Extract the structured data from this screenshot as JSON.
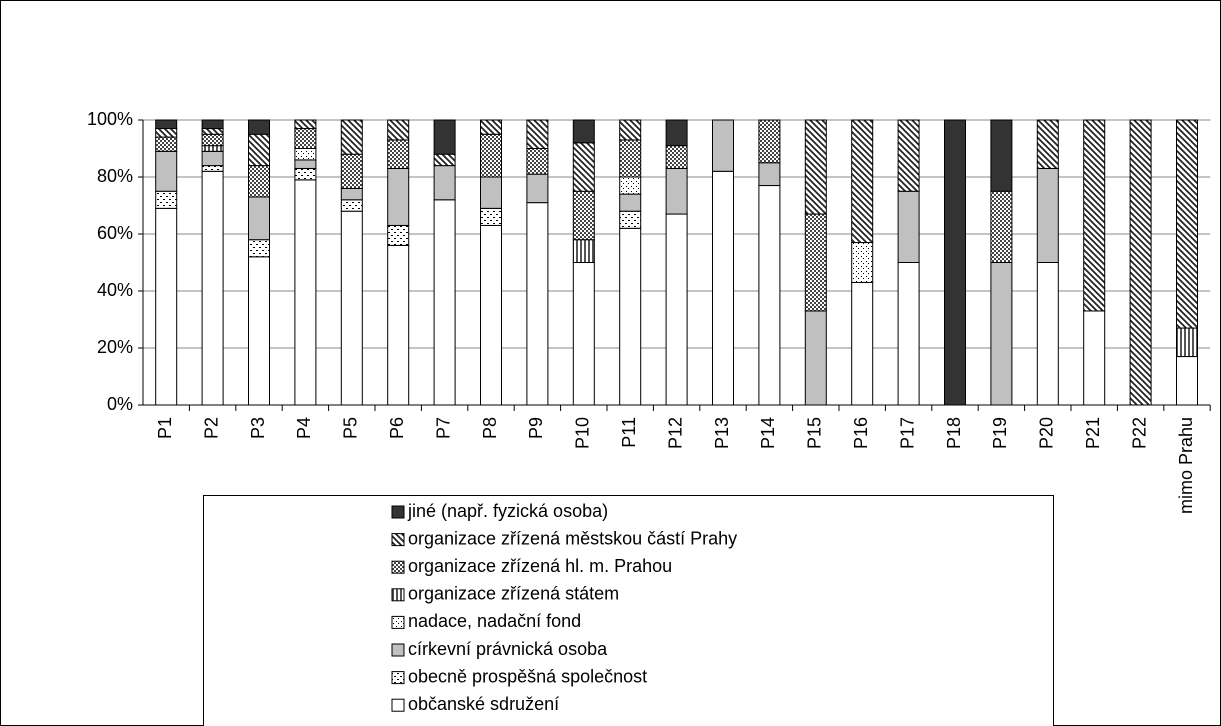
{
  "chart_data": {
    "type": "stacked_bar_100",
    "categories": [
      "P1",
      "P2",
      "P3",
      "P4",
      "P5",
      "P6",
      "P7",
      "P8",
      "P9",
      "P10",
      "P11",
      "P12",
      "P13",
      "P14",
      "P15",
      "P16",
      "P17",
      "P18",
      "P19",
      "P20",
      "P21",
      "P22",
      "mimo Prahu"
    ],
    "series": [
      {
        "name": "občanské sdružení",
        "color": "#ffffff",
        "values": [
          69,
          82,
          52,
          79,
          68,
          56,
          72,
          63,
          71,
          50,
          62,
          67,
          82,
          77,
          0,
          43,
          50,
          0,
          0,
          50,
          33,
          0,
          17
        ]
      },
      {
        "name": "obecně prospěšná společnost",
        "color": "#ffffff",
        "pattern": "dashes",
        "values": [
          6,
          2,
          6,
          4,
          4,
          7,
          0,
          6,
          0,
          0,
          6,
          0,
          0,
          0,
          0,
          0,
          0,
          0,
          0,
          0,
          0,
          0,
          0
        ]
      },
      {
        "name": "církevní právnická osoba",
        "color": "#c0c0c0",
        "values": [
          14,
          5,
          15,
          3,
          4,
          20,
          12,
          11,
          10,
          0,
          6,
          16,
          18,
          8,
          33,
          0,
          25,
          0,
          50,
          33,
          0,
          0,
          0
        ]
      },
      {
        "name": "nadace, nadační fond",
        "color": "#ffffff",
        "pattern": "dots",
        "values": [
          0,
          0,
          0,
          4,
          0,
          0,
          0,
          0,
          0,
          0,
          6,
          0,
          0,
          0,
          0,
          14,
          0,
          0,
          0,
          0,
          0,
          0,
          0
        ]
      },
      {
        "name": "organizace zřízená státem",
        "color": "#ffffff",
        "pattern": "vertical",
        "values": [
          0,
          2,
          0,
          0,
          0,
          0,
          0,
          0,
          0,
          8,
          0,
          0,
          0,
          0,
          0,
          0,
          0,
          0,
          0,
          0,
          0,
          0,
          10
        ]
      },
      {
        "name": "organizace zřízená hl. m. Prahou",
        "color": "#ffffff",
        "pattern": "crosshatch",
        "values": [
          5,
          4,
          11,
          7,
          12,
          10,
          0,
          15,
          9,
          17,
          13,
          8,
          0,
          15,
          34,
          0,
          0,
          0,
          25,
          0,
          0,
          0,
          0
        ]
      },
      {
        "name": "organizace zřízená městskou částí Prahy",
        "color": "#ffffff",
        "pattern": "diagonal",
        "values": [
          3,
          2,
          11,
          3,
          12,
          7,
          4,
          5,
          10,
          17,
          7,
          0,
          0,
          0,
          33,
          43,
          25,
          0,
          0,
          17,
          67,
          100,
          73
        ]
      },
      {
        "name": "jiné (např. fyzická osoba)",
        "color": "#333333",
        "values": [
          3,
          3,
          5,
          0,
          0,
          0,
          12,
          0,
          0,
          8,
          0,
          9,
          0,
          0,
          0,
          0,
          0,
          100,
          25,
          0,
          0,
          0,
          0
        ]
      }
    ],
    "ylim": [
      0,
      100
    ],
    "yticks": [
      {
        "value": 0,
        "label": "0%"
      },
      {
        "value": 20,
        "label": "20%"
      },
      {
        "value": 40,
        "label": "40%"
      },
      {
        "value": 60,
        "label": "60%"
      },
      {
        "value": 80,
        "label": "80%"
      },
      {
        "value": 100,
        "label": "100%"
      }
    ],
    "grid": true,
    "legend": "bottom"
  }
}
